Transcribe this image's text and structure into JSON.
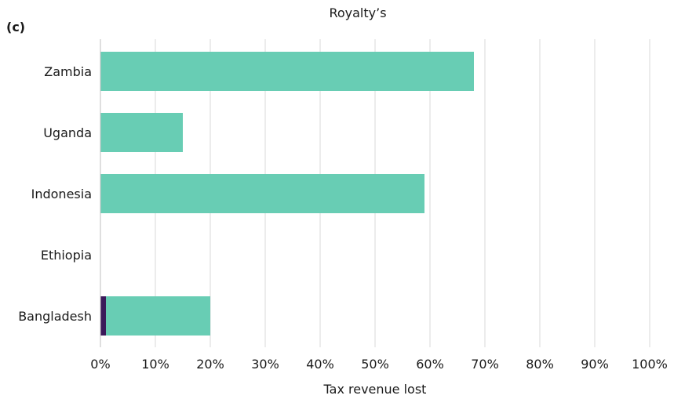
{
  "panel_label": "(c)",
  "chart_data": {
    "type": "bar",
    "orientation": "horizontal",
    "stacked": true,
    "title": "Royalty’s",
    "xlabel": "Tax revenue lost",
    "ylabel": "",
    "categories": [
      "Zambia",
      "Uganda",
      "Indonesia",
      "Ethiopia",
      "Bangladesh"
    ],
    "series": [
      {
        "values": [
          0,
          0,
          0,
          0,
          1
        ],
        "color": "#3b1a5a"
      },
      {
        "values": [
          68,
          15,
          59,
          0,
          19
        ],
        "color": "#68cdb4"
      }
    ],
    "xlim": [
      0,
      100
    ],
    "xticks": [
      0,
      10,
      20,
      30,
      40,
      50,
      60,
      70,
      80,
      90,
      100
    ],
    "xtick_labels": [
      "0%",
      "10%",
      "20%",
      "30%",
      "40%",
      "50%",
      "60%",
      "70%",
      "80%",
      "90%",
      "100%"
    ],
    "grid": "vertical",
    "gridline_color": "#d9d9d9"
  }
}
